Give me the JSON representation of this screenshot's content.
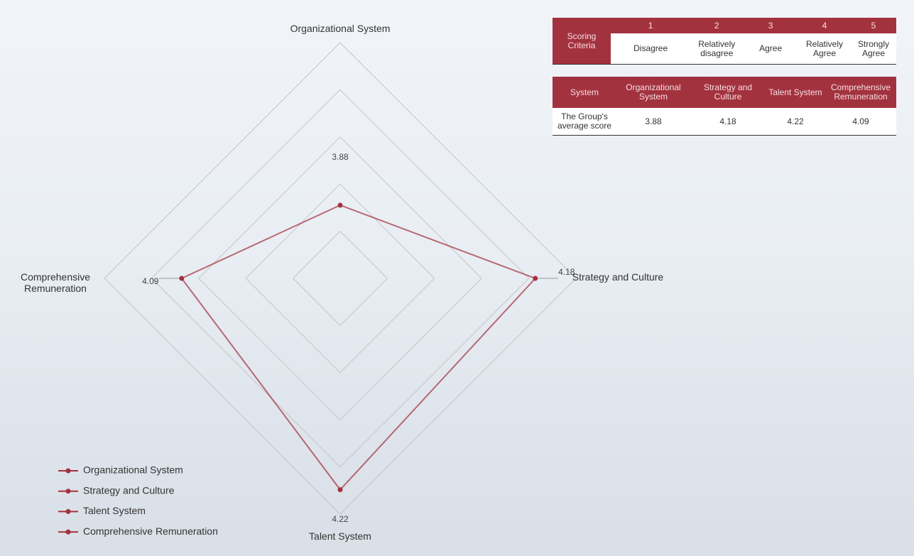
{
  "chart_data": {
    "type": "radar",
    "categories": [
      "Organizational System",
      "Strategy and Culture",
      "Talent System",
      "Comprehensive Remuneration"
    ],
    "values": [
      3.88,
      4.18,
      4.22,
      4.09
    ],
    "rlim": [
      3.7,
      4.28
    ],
    "rings": 5,
    "color": "#a3323f",
    "legend": "bottom-left"
  },
  "criteria_table": {
    "header": [
      "Scoring Criteria",
      "1",
      "2",
      "3",
      "4",
      "5"
    ],
    "row": [
      "Disagree",
      "Relatively disagree",
      "Agree",
      "Relatively Agree",
      "Strongly Agree"
    ]
  },
  "score_table": {
    "header": [
      "System",
      "Organizational System",
      "Strategy and Culture",
      "Talent System",
      "Comprehensive Remuneration"
    ],
    "row": [
      "The Group's average score",
      "3.88",
      "4.18",
      "4.22",
      "4.09"
    ]
  }
}
